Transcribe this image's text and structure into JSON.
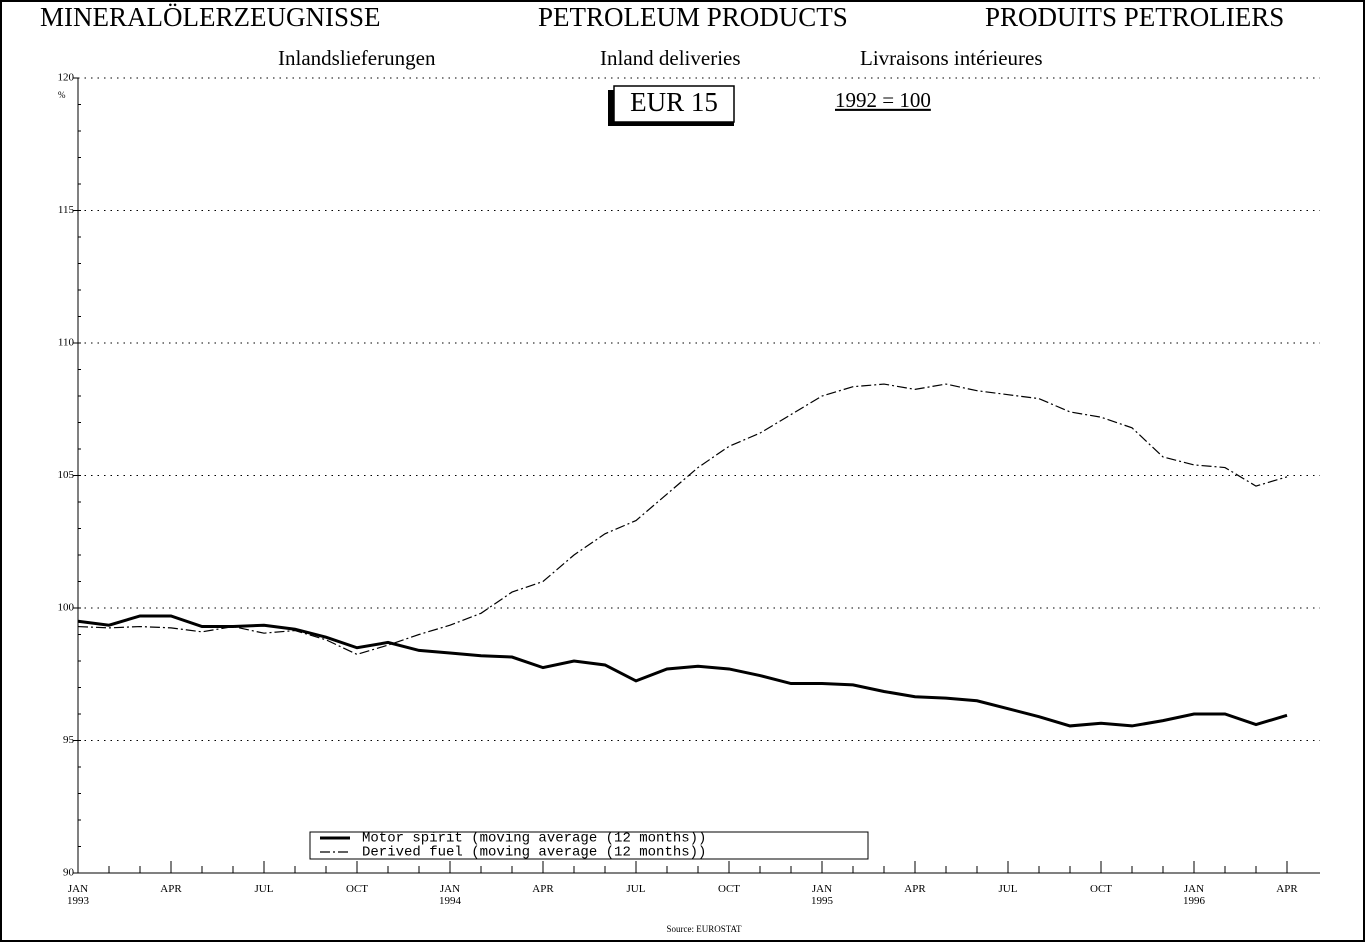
{
  "chart_data": {
    "type": "line",
    "titles": [
      "MINERALÖLERZEUGNISSE",
      "PETROLEUM PRODUCTS",
      "PRODUITS PETROLIERS"
    ],
    "subtitles": [
      "Inlandslieferungen",
      "Inland deliveries",
      "Livraisons intérieures"
    ],
    "region": "EUR 15",
    "base": "1992 = 100",
    "y_unit": "%",
    "source": "Source: EUROSTAT",
    "categories": [
      "JAN 1993",
      null,
      null,
      "APR",
      null,
      null,
      "JUL",
      null,
      null,
      "OCT",
      null,
      null,
      "JAN 1994",
      null,
      null,
      "APR",
      null,
      null,
      "JUL",
      null,
      null,
      "OCT",
      null,
      null,
      "JAN 1995",
      null,
      null,
      "APR",
      null,
      null,
      "JUL",
      null,
      null,
      "OCT",
      null,
      null,
      "JAN 1996",
      null,
      null,
      "APR"
    ],
    "series": [
      {
        "name": "Motor spirit (moving average (12 months))",
        "color": "#000",
        "style": "solid",
        "values": [
          99.5,
          99.35,
          99.7,
          99.7,
          99.3,
          99.3,
          99.35,
          99.2,
          98.9,
          98.5,
          98.7,
          98.4,
          98.3,
          98.2,
          98.15,
          97.75,
          98.0,
          97.85,
          97.25,
          97.7,
          97.8,
          97.7,
          97.45,
          97.15,
          97.15,
          97.1,
          96.85,
          96.65,
          96.6,
          96.5,
          96.2,
          95.9,
          95.55,
          95.65,
          95.55,
          95.75,
          96.0,
          96.0,
          95.6,
          95.95
        ]
      },
      {
        "name": "Derived fuel (moving average (12 months))",
        "color": "#000",
        "style": "dashdot",
        "values": [
          99.3,
          99.25,
          99.3,
          99.25,
          99.1,
          99.3,
          99.05,
          99.15,
          98.8,
          98.25,
          98.6,
          99.0,
          99.35,
          99.8,
          100.6,
          101.0,
          102.0,
          102.8,
          103.3,
          104.3,
          105.3,
          106.1,
          106.6,
          107.3,
          108.0,
          108.35,
          108.45,
          108.25,
          108.45,
          108.2,
          108.05,
          107.9,
          107.4,
          107.2,
          106.8,
          105.7,
          105.4,
          105.3,
          104.6,
          104.95
        ]
      }
    ],
    "ylim": [
      90,
      120
    ],
    "yticks": [
      90,
      95,
      100,
      105,
      110,
      115,
      120
    ],
    "grid": true,
    "legend": "bottom-left"
  }
}
